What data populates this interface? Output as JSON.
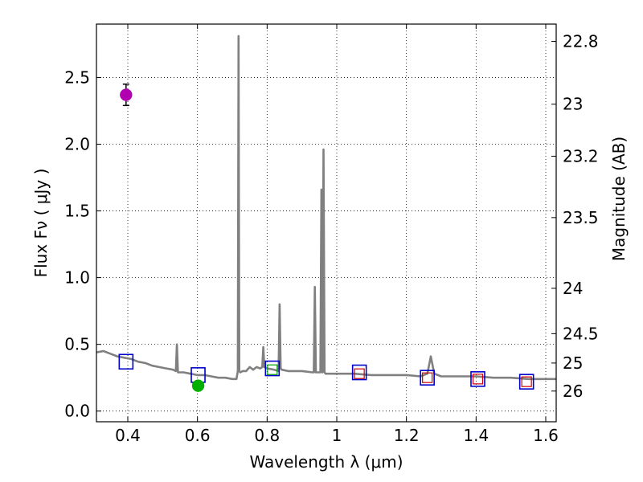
{
  "chart_data": {
    "type": "line",
    "title": "",
    "xlabel": "Wavelength  λ (μm)",
    "ylabel": "Flux  Fν  ( μJy )",
    "y2label": "Magnitude (AB)",
    "xlim": [
      0.31,
      1.63
    ],
    "ylim": [
      -0.08,
      2.9
    ],
    "grid": true,
    "xticks": [
      0.4,
      0.6,
      0.8,
      1.0,
      1.2,
      1.4,
      1.6
    ],
    "xtick_labels": [
      "0.4",
      "0.6",
      "0.8",
      "1",
      "1.2",
      "1.4",
      "1.6"
    ],
    "yticks": [
      0.0,
      0.5,
      1.0,
      1.5,
      2.0,
      2.5
    ],
    "ytick_labels": [
      "0.0",
      "0.5",
      "1.0",
      "1.5",
      "2.0",
      "2.5"
    ],
    "y2ticks": [
      {
        "label": "22.8",
        "flux": 2.77
      },
      {
        "label": "23",
        "flux": 2.3
      },
      {
        "label": "23.2",
        "flux": 1.91
      },
      {
        "label": "23.5",
        "flux": 1.45
      },
      {
        "label": "24",
        "flux": 0.92
      },
      {
        "label": "24.5",
        "flux": 0.58
      },
      {
        "label": "25",
        "flux": 0.36
      },
      {
        "label": "26",
        "flux": 0.15
      }
    ],
    "series": [
      {
        "name": "model spectrum",
        "color": "#808080",
        "x": [
          0.31,
          0.33,
          0.35,
          0.37,
          0.39,
          0.41,
          0.43,
          0.45,
          0.47,
          0.49,
          0.51,
          0.53,
          0.538,
          0.541,
          0.544,
          0.56,
          0.58,
          0.6,
          0.62,
          0.64,
          0.66,
          0.68,
          0.7,
          0.712,
          0.716,
          0.718,
          0.72,
          0.723,
          0.73,
          0.74,
          0.75,
          0.76,
          0.77,
          0.78,
          0.786,
          0.789,
          0.792,
          0.8,
          0.82,
          0.833,
          0.836,
          0.839,
          0.842,
          0.86,
          0.88,
          0.9,
          0.93,
          0.934,
          0.937,
          0.94,
          0.95,
          0.953,
          0.956,
          0.959,
          0.962,
          0.965,
          0.968,
          0.971,
          0.974,
          0.98,
          1.0,
          1.05,
          1.1,
          1.15,
          1.2,
          1.24,
          1.26,
          1.27,
          1.28,
          1.3,
          1.35,
          1.4,
          1.45,
          1.5,
          1.55,
          1.6,
          1.63
        ],
        "y": [
          0.44,
          0.45,
          0.43,
          0.41,
          0.4,
          0.39,
          0.37,
          0.36,
          0.34,
          0.33,
          0.32,
          0.31,
          0.3,
          0.5,
          0.29,
          0.29,
          0.28,
          0.27,
          0.27,
          0.26,
          0.25,
          0.25,
          0.24,
          0.24,
          0.3,
          2.81,
          0.3,
          0.29,
          0.3,
          0.3,
          0.33,
          0.31,
          0.33,
          0.32,
          0.33,
          0.48,
          0.33,
          0.32,
          0.31,
          0.3,
          0.8,
          0.32,
          0.31,
          0.3,
          0.3,
          0.3,
          0.29,
          0.29,
          0.93,
          0.29,
          0.29,
          0.29,
          1.66,
          0.29,
          1.96,
          0.29,
          0.28,
          0.28,
          0.28,
          0.28,
          0.28,
          0.28,
          0.27,
          0.27,
          0.27,
          0.26,
          0.28,
          0.41,
          0.28,
          0.26,
          0.26,
          0.26,
          0.25,
          0.25,
          0.24,
          0.24,
          0.24
        ]
      }
    ],
    "photometry_points": [
      {
        "name": "violet point",
        "x": 0.395,
        "y": 2.37,
        "yerr": 0.08,
        "color": "#b000b0"
      },
      {
        "name": "green point",
        "x": 0.602,
        "y": 0.19,
        "yerr": 0.02,
        "color": "#00b000"
      }
    ],
    "synthetic_flux_boxes": [
      {
        "x": 0.395,
        "y": 0.37
      },
      {
        "x": 0.602,
        "y": 0.27
      },
      {
        "x": 0.815,
        "y": 0.32
      },
      {
        "x": 1.065,
        "y": 0.29
      },
      {
        "x": 1.26,
        "y": 0.25
      },
      {
        "x": 1.405,
        "y": 0.24
      },
      {
        "x": 1.545,
        "y": 0.22
      }
    ],
    "inner_markers": [
      {
        "x": 0.815,
        "y": 0.31,
        "color": "#00a000"
      },
      {
        "x": 1.065,
        "y": 0.28,
        "color": "#cc0000"
      },
      {
        "x": 1.26,
        "y": 0.25,
        "color": "#cc0000"
      },
      {
        "x": 1.405,
        "y": 0.24,
        "color": "#cc0000"
      },
      {
        "x": 1.545,
        "y": 0.22,
        "color": "#cc0000"
      }
    ],
    "colors": {
      "box": "#0000cc",
      "spectrum": "#808080",
      "grid": "#000000"
    }
  }
}
